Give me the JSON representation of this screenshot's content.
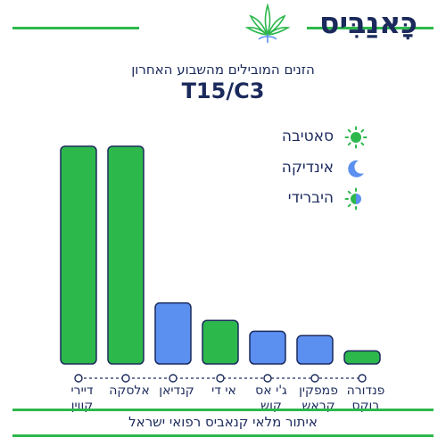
{
  "brand": {
    "name": "כָּאנַבִּיס",
    "colors": {
      "primary": "#1b2a5c",
      "accent": "#2db84c",
      "indica": "#5b8ff0"
    }
  },
  "legend": [
    {
      "label": "סאטיבה",
      "type": "sativa",
      "icon": "sun-icon",
      "color": "#2db84c"
    },
    {
      "label": "אינדיקה",
      "type": "indica",
      "icon": "moon-icon",
      "color": "#5b8ff0"
    },
    {
      "label": "היברידי",
      "type": "hybrid",
      "icon": "half-sun-moon-icon",
      "color": "#2db84c"
    }
  ],
  "chart_data": {
    "type": "bar",
    "title": "T15/C3",
    "subtitle": "הזנים המובילים מהשבוע האחרון",
    "categories": [
      [
        "דיירי",
        "קווין"
      ],
      [
        "אלסקה"
      ],
      [
        "קנדיאן"
      ],
      [
        "אי די"
      ],
      [
        "ג'י אס",
        "קוש"
      ],
      [
        "פמפקין",
        "קראש"
      ],
      [
        "פנדורה",
        "בוקס"
      ]
    ],
    "values": [
      100,
      100,
      28,
      20,
      15,
      13,
      6
    ],
    "strain_types": [
      "sativa",
      "sativa",
      "indica",
      "sativa",
      "indica",
      "indica",
      "sativa"
    ],
    "ylim": [
      0,
      100
    ],
    "grid": false,
    "legend_position": "top-right"
  },
  "footer": "איתור מלאי קנאביס רפואי ישראל"
}
